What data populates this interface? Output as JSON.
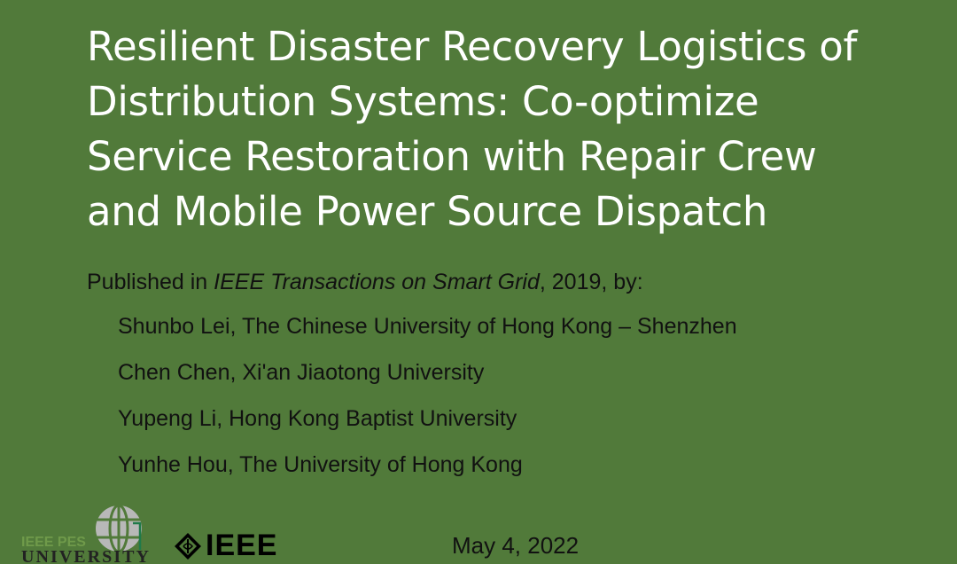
{
  "slide": {
    "title_lines": [
      "Resilient Disaster Recovery Logistics of",
      "Distribution Systems: Co-optimize",
      "Service Restoration with Repair Crew",
      "and Mobile Power Source Dispatch"
    ],
    "publication": {
      "prefix": "Published in ",
      "journal": "IEEE Transactions on Smart Grid",
      "suffix": ", 2019, by:"
    },
    "authors": [
      "Shunbo Lei, The Chinese University of Hong Kong – Shenzhen",
      "Chen Chen, Xi'an Jiaotong University",
      "Yupeng Li, Hong Kong Baptist University",
      "Yunhe Hou, The University of Hong Kong"
    ],
    "date": "May 4, 2022",
    "logos": {
      "pes_line1": "IEEE PES",
      "pes_line2": "UNIVERSITY",
      "ieee": "IEEE"
    },
    "colors": {
      "background": "#517a3a",
      "title": "#ffffff",
      "body_text": "#111111"
    }
  }
}
